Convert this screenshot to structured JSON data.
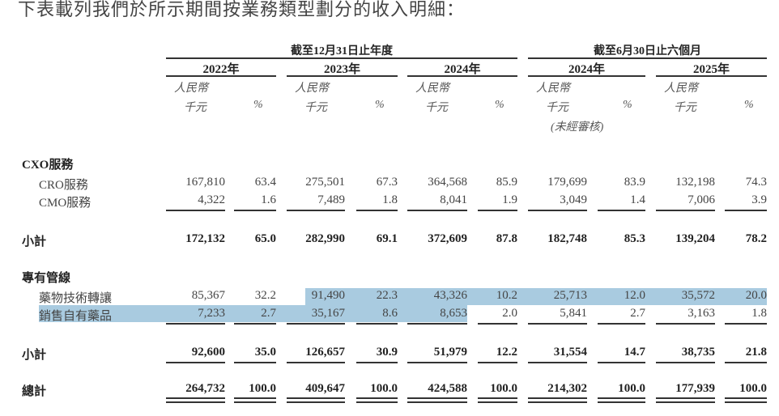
{
  "title": "下表載列我們於所示期間按業務類型劃分的收入明細：",
  "group_headers": [
    "截至12月31日止年度",
    "截至6月30日止六個月"
  ],
  "years": [
    "2022年",
    "2023年",
    "2024年",
    "2024年",
    "2025年"
  ],
  "currency_label": "人民幣",
  "unit_label": "千元",
  "pct_label": "%",
  "unaudited_label": "(未經審核)",
  "highlight_color": "#a9cbe0",
  "sections": [
    {
      "label": "CXO服務",
      "rows": [
        {
          "label": "CRO服務",
          "values": [
            "167,810",
            "63.4",
            "275,501",
            "67.3",
            "364,568",
            "85.9",
            "179,699",
            "83.9",
            "132,198",
            "74.3"
          ]
        },
        {
          "label": "CMO服務",
          "values": [
            "4,322",
            "1.6",
            "7,489",
            "1.8",
            "8,041",
            "1.9",
            "3,049",
            "1.4",
            "7,006",
            "3.9"
          ]
        }
      ],
      "subtotal": {
        "label": "小計",
        "values": [
          "172,132",
          "65.0",
          "282,990",
          "69.1",
          "372,609",
          "87.8",
          "182,748",
          "85.3",
          "139,204",
          "78.2"
        ]
      }
    },
    {
      "label": "專有管線",
      "rows": [
        {
          "label": "藥物技術轉讓",
          "values": [
            "85,367",
            "32.2",
            "91,490",
            "22.3",
            "43,326",
            "10.2",
            "25,713",
            "12.0",
            "35,572",
            "20.0"
          ]
        },
        {
          "label": "銷售自有藥品",
          "values": [
            "7,233",
            "2.7",
            "35,167",
            "8.6",
            "8,653",
            "2.0",
            "5,841",
            "2.7",
            "3,163",
            "1.8"
          ]
        }
      ],
      "subtotal": {
        "label": "小計",
        "values": [
          "92,600",
          "35.0",
          "126,657",
          "30.9",
          "51,979",
          "12.2",
          "31,554",
          "14.7",
          "38,735",
          "21.8"
        ]
      }
    }
  ],
  "total": {
    "label": "總計",
    "values": [
      "264,732",
      "100.0",
      "409,647",
      "100.0",
      "424,588",
      "100.0",
      "214,302",
      "100.0",
      "177,939",
      "100.0"
    ]
  }
}
